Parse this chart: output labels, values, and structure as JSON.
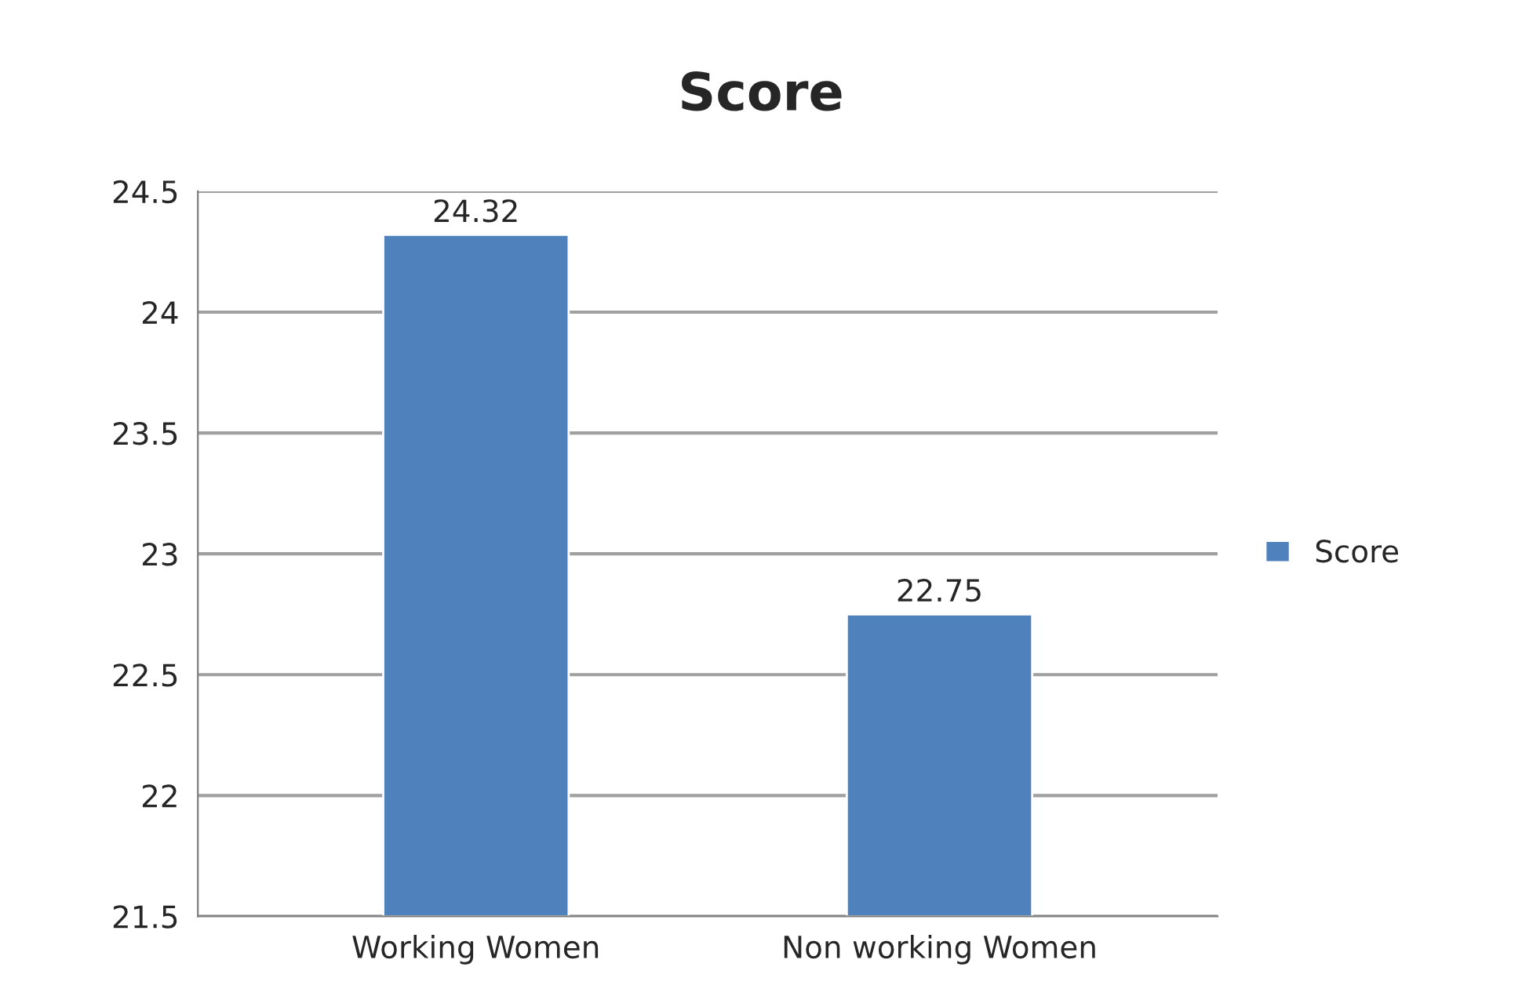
{
  "chart_data": {
    "type": "bar",
    "title": "Score",
    "categories": [
      "Working Women",
      "Non working Women"
    ],
    "series": [
      {
        "name": "Score",
        "color": "#4f81bd",
        "values": [
          24.32,
          22.75
        ]
      }
    ],
    "ylim": [
      21.5,
      24.5
    ],
    "yticks": [
      21.5,
      22,
      22.5,
      23,
      23.5,
      24,
      24.5
    ],
    "grid": "y",
    "legend": "right",
    "data_labels": true
  }
}
